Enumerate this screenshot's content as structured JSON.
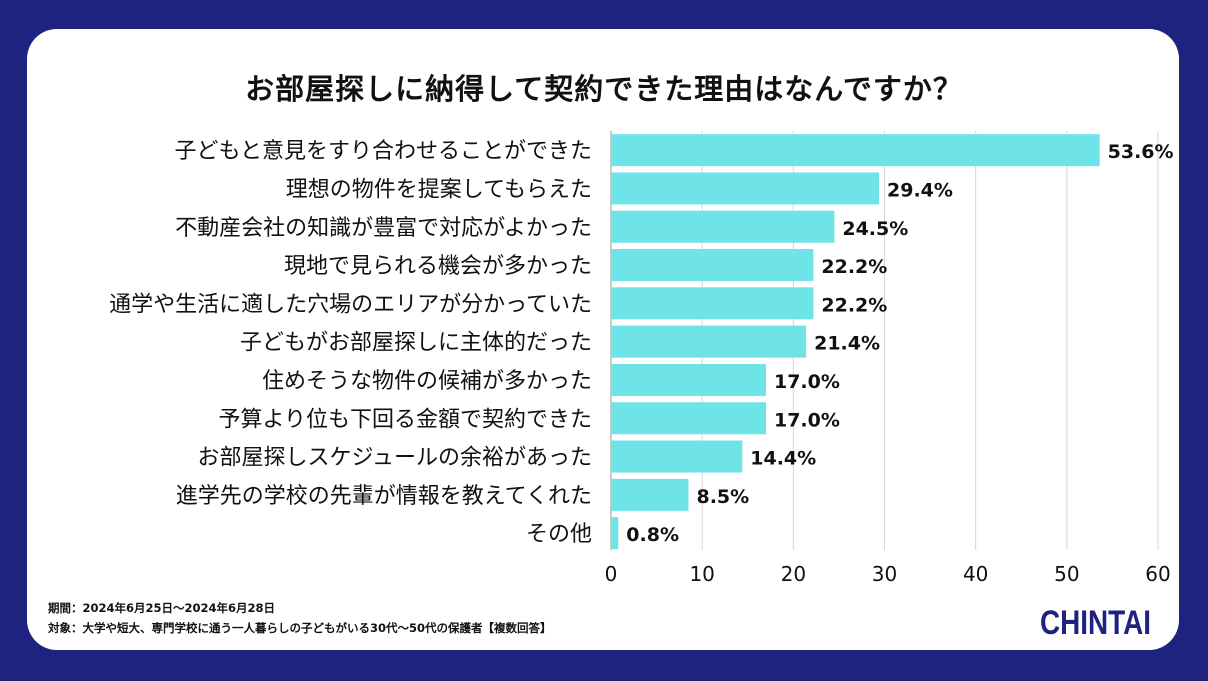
{
  "chart_data": {
    "type": "bar",
    "orientation": "horizontal",
    "title": "お部屋探しに納得して契約できた理由はなんですか？",
    "categories": [
      "子どもと意見をすり合わせることができた",
      "理想の物件を提案してもらえた",
      "不動産会社の知識が豊富で対応がよかった",
      "現地で見られる機会が多かった",
      "通学や生活に適した穴場のエリアが分かっていた",
      "子どもがお部屋探しに主体的だった",
      "住めそうな物件の候補が多かった",
      "予算より位も下回る金額で契約できた",
      "お部屋探しスケジュールの余裕があった",
      "進学先の学校の先輩が情報を教えてくれた",
      "その他"
    ],
    "values": [
      53.6,
      29.4,
      24.5,
      22.2,
      22.2,
      21.4,
      17.0,
      17.0,
      14.4,
      8.5,
      0.8
    ],
    "data_labels": [
      "53.6%",
      "29.4%",
      "24.5%",
      "22.2%",
      "22.2%",
      "21.4%",
      "17.0%",
      "17.0%",
      "14.4%",
      "8.5%",
      "0.8%"
    ],
    "xlim": [
      0,
      60
    ],
    "xticks": [
      0,
      10,
      20,
      30,
      40,
      50,
      60
    ],
    "grid": true,
    "bar_color": "#6ee3e8"
  },
  "footnote": {
    "period": "期間：2024年6月25日～2024年6月28日",
    "target": "対象：大学や短大、専門学校に通う一人暮らしの子どもがいる30代～50代の保護者【複数回答】"
  },
  "brand": {
    "logo_text": "CHINTAI",
    "background_color": "#1f2380"
  }
}
